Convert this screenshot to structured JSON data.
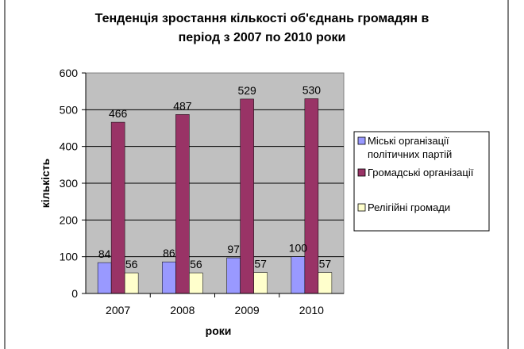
{
  "chart_data": {
    "type": "bar",
    "title_lines": [
      "Тенденція зростання кількості об'єднань громадян в",
      "період з 2007 по 2010 роки"
    ],
    "xlabel": "роки",
    "ylabel": "кількість",
    "categories": [
      "2007",
      "2008",
      "2009",
      "2010"
    ],
    "ylim": [
      0,
      600
    ],
    "yticks": [
      0,
      100,
      200,
      300,
      400,
      500,
      600
    ],
    "grid": true,
    "legend_position": "right",
    "series": [
      {
        "name_lines": [
          "Міські організації",
          "політичних партій"
        ],
        "values": [
          84,
          86,
          97,
          100
        ],
        "color": "#9999ff"
      },
      {
        "name_lines": [
          "Громадські організації"
        ],
        "values": [
          466,
          487,
          529,
          530
        ],
        "color": "#993366"
      },
      {
        "name_lines": [
          "Релігійні громади"
        ],
        "values": [
          56,
          56,
          57,
          57
        ],
        "color": "#ffffcc"
      }
    ],
    "plot_background": "#c0c0c0"
  }
}
